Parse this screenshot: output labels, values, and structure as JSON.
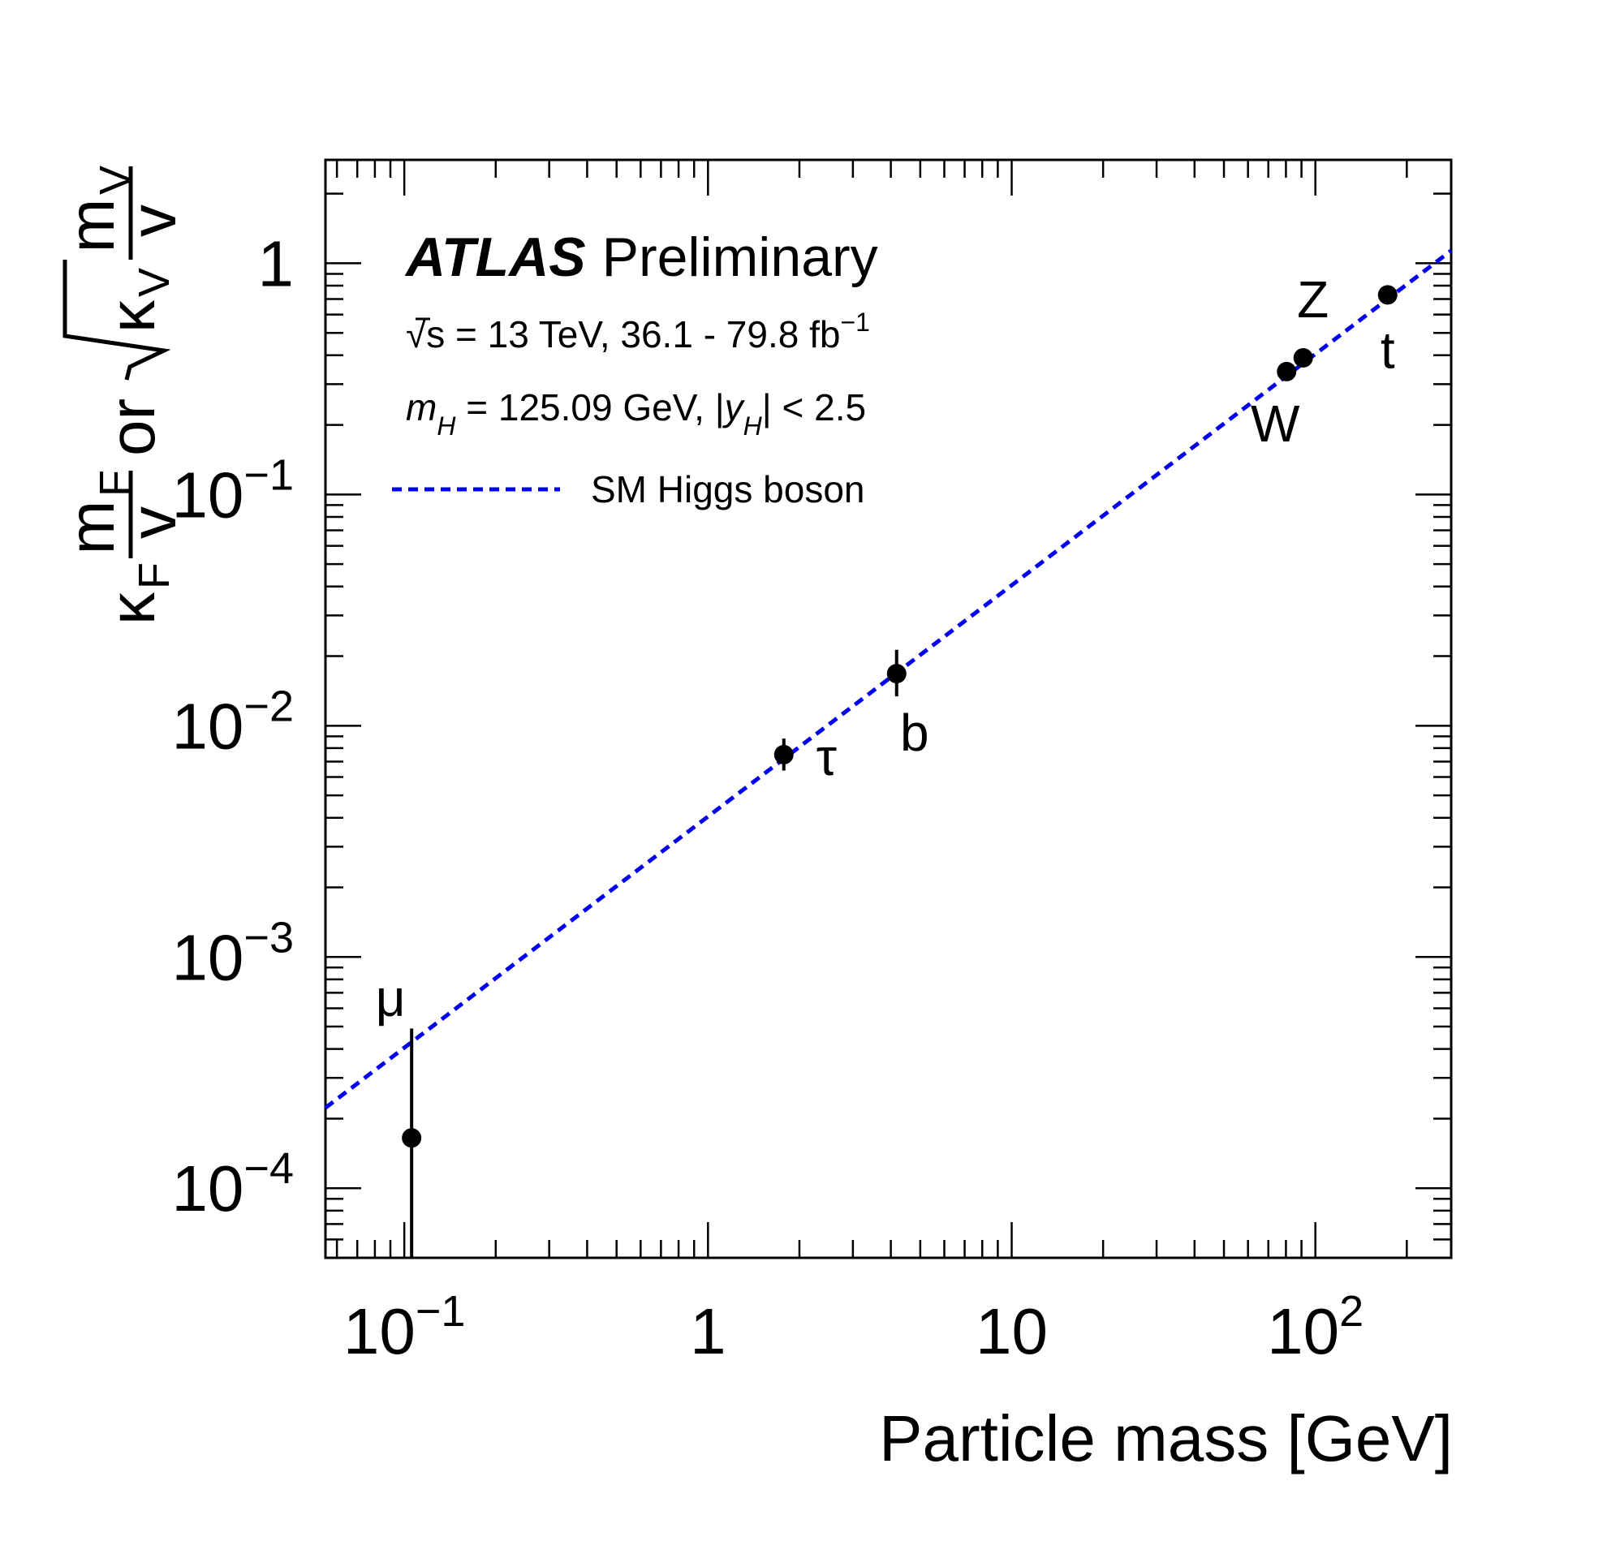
{
  "chart_data": {
    "type": "scatter",
    "x_scale": "log",
    "y_scale": "log",
    "xlim": [
      0.055,
      280
    ],
    "ylim": [
      5e-05,
      2.8
    ],
    "xlabel": "Particle mass [GeV]",
    "ylabel": {
      "part1": "κ",
      "sub1": "F",
      "frac1_num": "m",
      "frac1_num_sub": "F",
      "frac1_den": "v",
      "or": "or",
      "sqrt_k": "κ",
      "sqrt_k_sub": "V",
      "frac2_num": "m",
      "frac2_num_sub": "V",
      "frac2_den": "v"
    },
    "x_ticks": [
      {
        "value": 0.1,
        "base": "10",
        "exp": "−1"
      },
      {
        "value": 1,
        "base": "1",
        "exp": ""
      },
      {
        "value": 10,
        "base": "10",
        "exp": ""
      },
      {
        "value": 100,
        "base": "10",
        "exp": "2"
      }
    ],
    "y_ticks": [
      {
        "value": 0.0001,
        "base": "10",
        "exp": "−4"
      },
      {
        "value": 0.001,
        "base": "10",
        "exp": "−3"
      },
      {
        "value": 0.01,
        "base": "10",
        "exp": "−2"
      },
      {
        "value": 0.1,
        "base": "10",
        "exp": "−1"
      },
      {
        "value": 1,
        "base": "1",
        "exp": ""
      }
    ],
    "grid": false,
    "legend": {
      "placement": "top-left",
      "brand": "ATLAS",
      "status": "Preliminary",
      "energy_line": {
        "sqrt": "√",
        "s": "s",
        "text": " = 13 TeV, 36.1 - 79.8 fb",
        "sup": "−1"
      },
      "mass_line": {
        "m": "m",
        "m_sub": "H",
        "mid": " = 125.09 GeV, |",
        "y": "y",
        "y_sub": "H",
        "end": "| < 2.5"
      },
      "line_label": "SM Higgs boson"
    },
    "sm_line": {
      "name": "SM Higgs boson",
      "color": "#0000ee",
      "slope": 0.00405,
      "x_range": [
        0.055,
        280
      ]
    },
    "points": [
      {
        "label": "μ",
        "x": 0.1057,
        "y": 0.000165,
        "y_low": 3e-05,
        "y_high": 0.00049
      },
      {
        "label": "τ",
        "x": 1.777,
        "y": 0.0075,
        "y_low": 0.0064,
        "y_high": 0.0088
      },
      {
        "label": "b",
        "x": 4.18,
        "y": 0.0168,
        "y_low": 0.0134,
        "y_high": 0.0213
      },
      {
        "label": "W",
        "x": 80.4,
        "y": 0.34,
        "y_low": 0.32,
        "y_high": 0.36
      },
      {
        "label": "Z",
        "x": 91.19,
        "y": 0.39,
        "y_low": 0.37,
        "y_high": 0.41
      },
      {
        "label": "t",
        "x": 173.0,
        "y": 0.73,
        "y_low": 0.69,
        "y_high": 0.77
      }
    ],
    "colors": {
      "points": "#000000",
      "sm_line": "#0000ee"
    }
  }
}
